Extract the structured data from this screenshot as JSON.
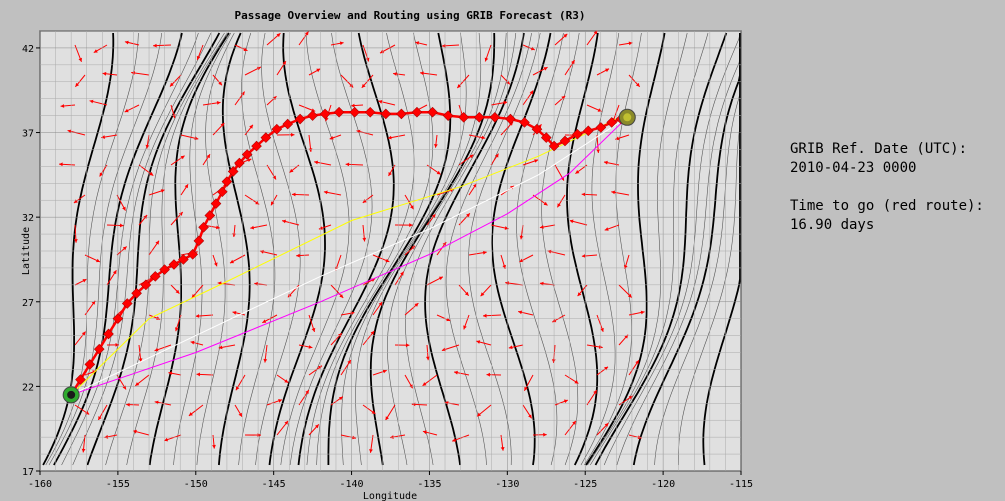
{
  "chart_data": {
    "type": "line",
    "title": "Passage Overview and Routing using GRIB Forecast (R3)",
    "xlabel": "Longitude",
    "ylabel": "Latitude",
    "xlim": [
      -160,
      -115
    ],
    "ylim": [
      17,
      43
    ],
    "x_ticks": [
      "-160",
      "-155",
      "-150",
      "-145",
      "-140",
      "-135",
      "-130",
      "-125",
      "-120",
      "-115"
    ],
    "y_ticks": [
      "17",
      "22",
      "27",
      "32",
      "37",
      "42"
    ],
    "grid": true,
    "series": [
      {
        "route": "red",
        "color": "#ff0000",
        "x": [
          -158,
          -157.4,
          -156.8,
          -156.2,
          -155.6,
          -155,
          -154.4,
          -153.8,
          -153.2,
          -152.6,
          -152,
          -151.4,
          -150.8,
          -150.2,
          -149.8,
          -149.5,
          -149.1,
          -148.7,
          -148.3,
          -148,
          -147.6,
          -147.2,
          -146.7,
          -146.1,
          -145.5,
          -144.8,
          -144.1,
          -143.3,
          -142.5,
          -141.7,
          -140.8,
          -139.8,
          -138.8,
          -137.8,
          -136.8,
          -135.8,
          -134.8,
          -133.8,
          -132.8,
          -131.8,
          -130.8,
          -129.8,
          -128.9,
          -128.1,
          -127.5,
          -127,
          -126.3,
          -125.5,
          -124.8,
          -124,
          -123.3,
          -122.7,
          -122.3
        ],
        "y": [
          21.5,
          22.4,
          23.3,
          24.2,
          25.1,
          26.0,
          26.9,
          27.5,
          28.0,
          28.5,
          28.9,
          29.2,
          29.5,
          29.8,
          30.6,
          31.4,
          32.1,
          32.8,
          33.5,
          34.1,
          34.7,
          35.2,
          35.7,
          36.2,
          36.7,
          37.2,
          37.5,
          37.8,
          38.0,
          38.1,
          38.2,
          38.2,
          38.2,
          38.1,
          38.1,
          38.2,
          38.2,
          38.0,
          37.9,
          37.9,
          37.9,
          37.8,
          37.6,
          37.2,
          36.7,
          36.2,
          36.5,
          36.9,
          37.1,
          37.3,
          37.6,
          37.8,
          37.9
        ]
      },
      {
        "route": "yellow",
        "color": "#ffff00",
        "x": [
          -158,
          -153,
          -148,
          -140,
          -133,
          -128,
          -123
        ],
        "y": [
          21.5,
          26.0,
          28.2,
          31.8,
          33.8,
          35.6,
          37.8
        ]
      },
      {
        "route": "great-circle",
        "color": "#ff00ff",
        "x": [
          -158,
          -150,
          -142,
          -135,
          -130,
          -126,
          -122.3
        ],
        "y": [
          21.5,
          24.0,
          27.0,
          29.8,
          32.2,
          34.6,
          37.9
        ]
      },
      {
        "route": "rhumb",
        "color": "#ffffff",
        "x": [
          -158,
          -150,
          -142,
          -135,
          -128,
          -122.3
        ],
        "y": [
          21.5,
          25.0,
          28.5,
          31.3,
          34.5,
          37.9
        ]
      }
    ],
    "markers": [
      {
        "name": "start",
        "x": -158,
        "y": 21.5
      },
      {
        "name": "destination",
        "x": -122.3,
        "y": 37.9
      }
    ]
  },
  "info": {
    "grib_label": "GRIB Ref. Date (UTC):",
    "grib_value": "2010-04-23 0000",
    "ttg_label": "Time to go (red route):",
    "ttg_value": "16.90 days"
  }
}
